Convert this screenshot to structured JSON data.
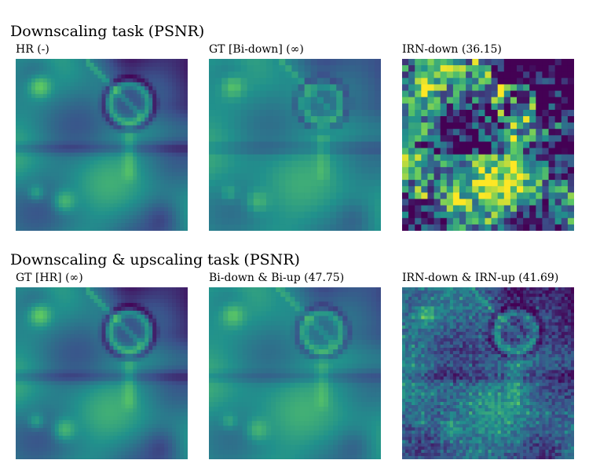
{
  "sections": [
    {
      "title": "Downscaling task (PSNR)",
      "panels": [
        {
          "title": "HR (-)",
          "image": "hr"
        },
        {
          "title": "GT [Bi-down] (∞)",
          "image": "bi-down"
        },
        {
          "title": "IRN-down (36.15)",
          "image": "irn-down"
        }
      ]
    },
    {
      "title": "Downscaling & upscaling task (PSNR)",
      "panels": [
        {
          "title": "GT [HR] (∞)",
          "image": "hr"
        },
        {
          "title": "Bi-down & Bi-up (47.75)",
          "image": "bi-up"
        },
        {
          "title": "IRN-down & IRN-up (41.69)",
          "image": "irn-up"
        }
      ]
    }
  ],
  "colormap": "viridis",
  "colors": {
    "dark_purple": "#440154",
    "blue": "#3b528b",
    "teal": "#21918c",
    "green": "#5ec962",
    "yellow": "#fde725"
  }
}
